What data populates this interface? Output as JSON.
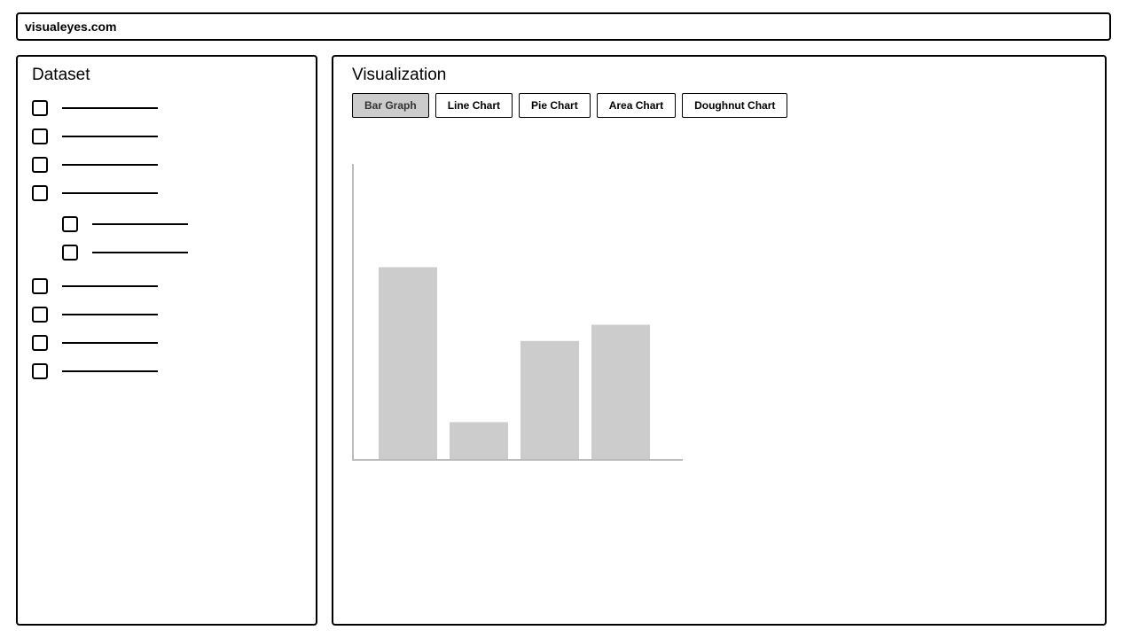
{
  "browser": {
    "url": "visualeyes.com"
  },
  "dataset": {
    "title": "Dataset",
    "items": [
      {
        "label": "",
        "checked": false,
        "indent": 0
      },
      {
        "label": "",
        "checked": false,
        "indent": 0
      },
      {
        "label": "",
        "checked": false,
        "indent": 0
      },
      {
        "label": "",
        "checked": false,
        "indent": 0
      },
      {
        "label": "",
        "checked": false,
        "indent": 1
      },
      {
        "label": "",
        "checked": false,
        "indent": 1
      },
      {
        "label": "",
        "checked": false,
        "indent": 0
      },
      {
        "label": "",
        "checked": false,
        "indent": 0
      },
      {
        "label": "",
        "checked": false,
        "indent": 0
      },
      {
        "label": "",
        "checked": false,
        "indent": 0
      }
    ]
  },
  "visualization": {
    "title": "Visualization",
    "tabs": [
      {
        "label": "Bar Graph",
        "active": true
      },
      {
        "label": "Line Chart",
        "active": false
      },
      {
        "label": "Pie Chart",
        "active": false
      },
      {
        "label": "Area Chart",
        "active": false
      },
      {
        "label": "Doughnut Chart",
        "active": false
      }
    ]
  },
  "colors": {
    "bar": "#cccccc",
    "axis": "#bbbbbb",
    "active_tab": "#cccccc"
  },
  "chart_data": {
    "type": "bar",
    "categories": [
      "",
      "",
      "",
      ""
    ],
    "values": [
      65,
      12.5,
      40,
      45.5
    ],
    "ylim": [
      0,
      100
    ],
    "grid": false,
    "legend": "none"
  }
}
